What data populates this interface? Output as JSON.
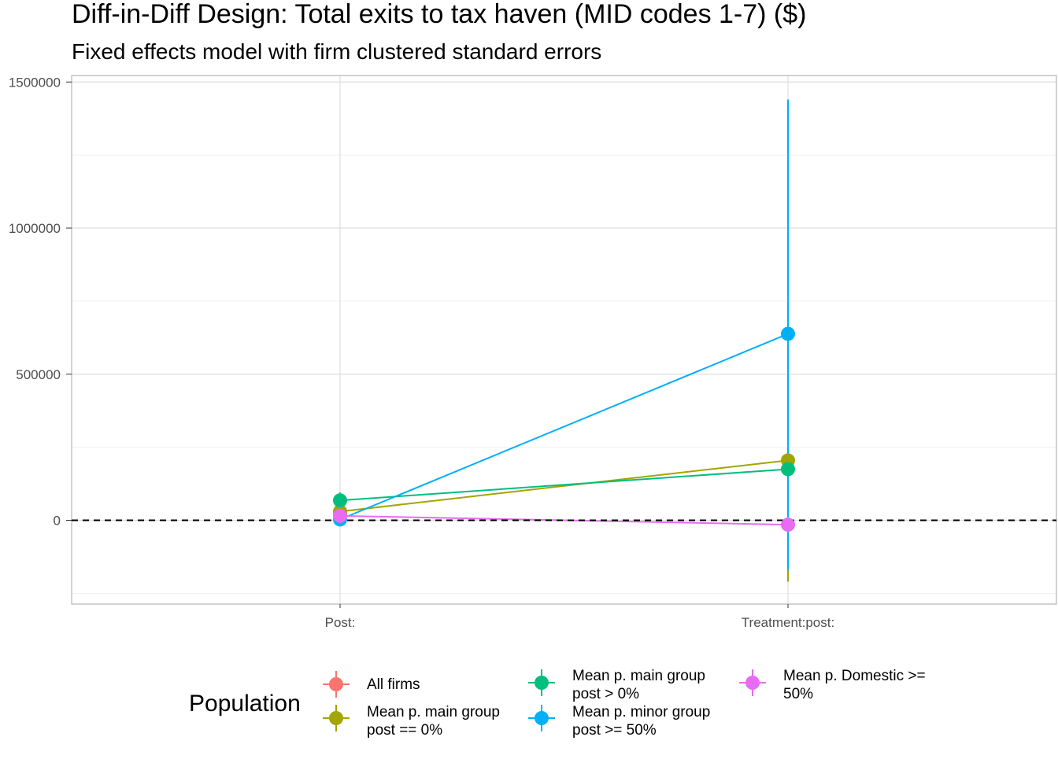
{
  "chart_data": {
    "type": "scatter",
    "title": "Diff-in-Diff Design: Total exits to tax haven (MID codes 1-7)  ($)",
    "subtitle": "Fixed effects model with firm clustered standard errors",
    "xlabel": "",
    "ylabel": "",
    "categories": [
      "Post:",
      "Treatment:post:"
    ],
    "y_ticks": [
      0,
      500000,
      1000000,
      1500000
    ],
    "y_tick_labels": [
      "0",
      "500000",
      "1000000",
      "1500000"
    ],
    "ylim": [
      -250000,
      1520000
    ],
    "reference_line": {
      "y": 0,
      "style": "dashed",
      "color": "#000000"
    },
    "grid": true,
    "legend": {
      "title": "Population",
      "placement": "bottom"
    },
    "series": [
      {
        "name": "All firms",
        "label_lines": [
          "All firms"
        ],
        "color": "#F8766D",
        "values": [
          20000,
          null
        ],
        "ci_low": [
          0,
          null
        ],
        "ci_high": [
          45000,
          null
        ]
      },
      {
        "name": "Mean p. main group post == 0%",
        "label_lines": [
          "Mean p. main group",
          "post == 0%"
        ],
        "color": "#A3A500",
        "values": [
          30000,
          205000
        ],
        "ci_low": [
          10000,
          -210000
        ],
        "ci_high": [
          55000,
          620000
        ]
      },
      {
        "name": "Mean p. main group post > 0%",
        "label_lines": [
          "Mean p. main group",
          "post > 0%"
        ],
        "color": "#00BF7D",
        "values": [
          68000,
          175000
        ],
        "ci_low": [
          45000,
          -150000
        ],
        "ci_high": [
          95000,
          500000
        ]
      },
      {
        "name": "Mean p. minor group post >= 50%",
        "label_lines": [
          "Mean p. minor group",
          "post >= 50%"
        ],
        "color": "#00B0F6",
        "values": [
          3000,
          638000
        ],
        "ci_low": [
          -10000,
          -170000
        ],
        "ci_high": [
          15000,
          1440000
        ]
      },
      {
        "name": "Mean p. Domestic >= 50%",
        "label_lines": [
          "Mean p. Domestic >=",
          "50%"
        ],
        "color": "#E76BF3",
        "values": [
          15000,
          -15000
        ],
        "ci_low": [
          5000,
          -40000
        ],
        "ci_high": [
          25000,
          10000
        ]
      }
    ]
  }
}
